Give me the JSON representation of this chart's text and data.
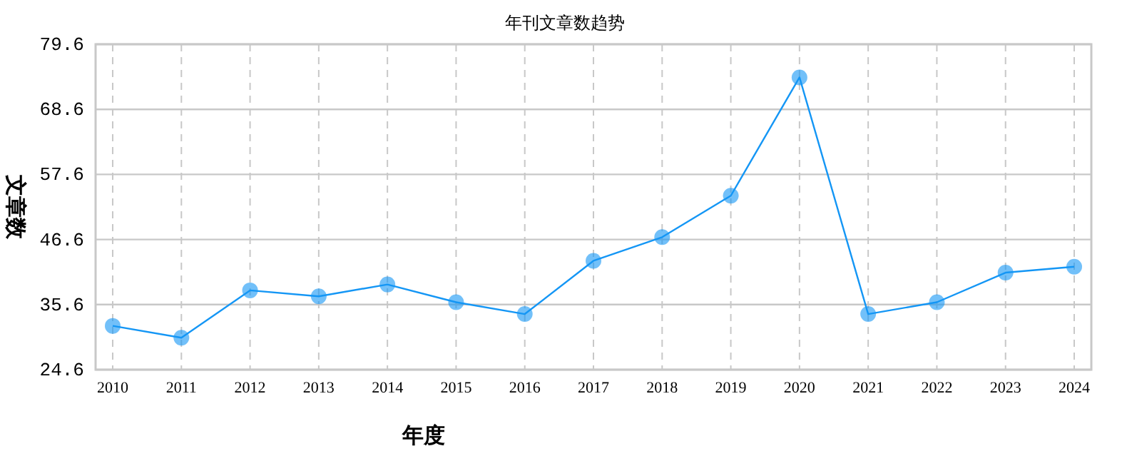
{
  "chart_data": {
    "type": "line",
    "title": "年刊文章数趋势",
    "xlabel": "年度",
    "ylabel": "文章数",
    "categories": [
      "2010",
      "2011",
      "2012",
      "2013",
      "2014",
      "2015",
      "2016",
      "2017",
      "2018",
      "2019",
      "2020",
      "2021",
      "2022",
      "2023",
      "2024"
    ],
    "series": [
      {
        "color": "#1496f5",
        "values": [
          32,
          30,
          38,
          37,
          39,
          36,
          34,
          43,
          47,
          54,
          74,
          34,
          36,
          41,
          42
        ]
      }
    ],
    "ylim": [
      24.6,
      79.6
    ],
    "yticks": [
      24.6,
      35.6,
      46.6,
      57.6,
      68.6,
      79.6
    ],
    "grid": true,
    "marker": "circle",
    "line_style": "solid"
  }
}
